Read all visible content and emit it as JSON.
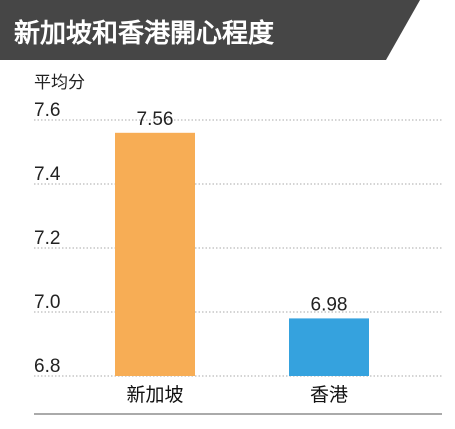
{
  "colors": {
    "banner": "#464646",
    "grid": "#aaaaaa",
    "bars": [
      "#f7ad55",
      "#35a2de"
    ]
  },
  "chart_data": {
    "type": "bar",
    "title": "新加坡和香港開心程度",
    "ylabel": "平均分",
    "xlabel": "",
    "categories": [
      "新加坡",
      "香港"
    ],
    "values": [
      7.56,
      6.98
    ],
    "value_labels": [
      "7.56",
      "6.98"
    ],
    "ylim": [
      6.8,
      7.6
    ],
    "yticks": [
      6.8,
      7.0,
      7.2,
      7.4,
      7.6
    ],
    "ytick_labels": [
      "6.8",
      "7.0",
      "7.2",
      "7.4",
      "7.6"
    ],
    "grid": true,
    "legend": "none"
  }
}
